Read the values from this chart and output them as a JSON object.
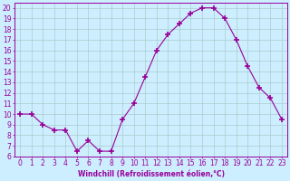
{
  "x": [
    0,
    1,
    2,
    3,
    4,
    5,
    6,
    7,
    8,
    9,
    10,
    11,
    12,
    13,
    14,
    15,
    16,
    17,
    18,
    19,
    20,
    21,
    22,
    23
  ],
  "y": [
    10,
    10,
    9,
    8.5,
    8.5,
    6.5,
    7.5,
    6.5,
    6.5,
    9.5,
    11,
    13.5,
    16,
    17.5,
    18.5,
    19.5,
    20,
    20,
    19,
    17,
    14.5,
    12.5,
    11.5,
    9.5
  ],
  "line_color": "#990099",
  "marker": "+",
  "marker_size": 4,
  "marker_lw": 1.2,
  "bg_color": "#cceeff",
  "grid_color": "#aacccc",
  "xlabel": "Windchill (Refroidissement éolien,°C)",
  "xlim": [
    -0.5,
    23.5
  ],
  "ylim": [
    6,
    20.5
  ],
  "xticks": [
    0,
    1,
    2,
    3,
    4,
    5,
    6,
    7,
    8,
    9,
    10,
    11,
    12,
    13,
    14,
    15,
    16,
    17,
    18,
    19,
    20,
    21,
    22,
    23
  ],
  "yticks": [
    6,
    7,
    8,
    9,
    10,
    11,
    12,
    13,
    14,
    15,
    16,
    17,
    18,
    19,
    20
  ],
  "label_fontsize": 5.5,
  "tick_fontsize": 5.5
}
